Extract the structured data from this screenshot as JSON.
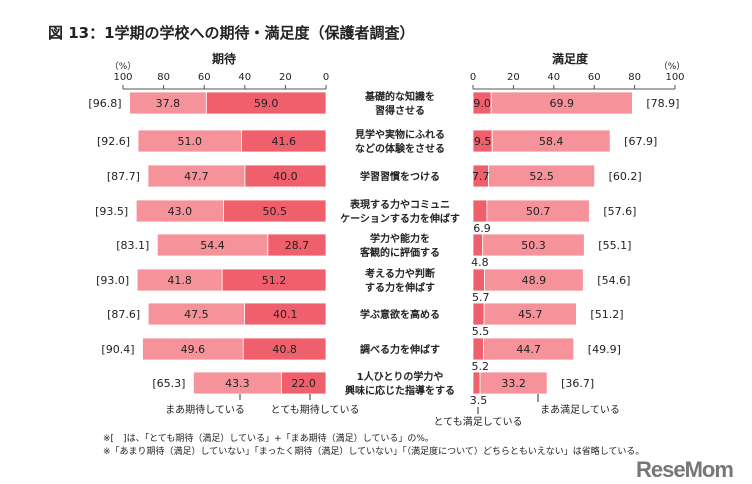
{
  "chart_data": {
    "type": "bar",
    "title": "図 13：1学期の学校への期待・満足度（保護者調査）",
    "categories": [
      "基礎的な知識を\n習得させる",
      "見学や実物にふれる\nなどの体験をさせる",
      "学習習慣をつける",
      "表現する力やコミュニ\nケーションする力を伸ばす",
      "学力や能力を\n客観的に評価する",
      "考える力や判断\nする力を伸ばす",
      "学ぶ意欲を高める",
      "調べる力を伸ばす",
      "1人ひとりの学力や\n興味に応じた指導をする"
    ],
    "panels": [
      {
        "heading": "期待",
        "unit": "（%）",
        "xlim": [
          100,
          0
        ],
        "ticks": [
          "100",
          "80",
          "60",
          "40",
          "20",
          "0"
        ],
        "series": [
          {
            "name": "とても期待している",
            "color": "#f0606c",
            "values": [
              59.0,
              41.6,
              40.0,
              50.5,
              28.7,
              51.2,
              40.1,
              40.8,
              22.0
            ]
          },
          {
            "name": "まあ期待している",
            "color": "#f6939a",
            "values": [
              37.8,
              51.0,
              47.7,
              43.0,
              54.4,
              41.8,
              47.5,
              49.6,
              43.3
            ]
          }
        ],
        "totals": [
          "[96.8]",
          "[92.6]",
          "[87.7]",
          "[93.5]",
          "[83.1]",
          "[93.0]",
          "[87.6]",
          "[90.4]",
          "[65.3]"
        ]
      },
      {
        "heading": "満足度",
        "unit": "（%）",
        "xlim": [
          0,
          100
        ],
        "ticks": [
          "0",
          "20",
          "40",
          "60",
          "80",
          "100"
        ],
        "series": [
          {
            "name": "とても満足している",
            "color": "#f0606c",
            "values": [
              9.0,
              9.5,
              7.7,
              6.9,
              4.8,
              5.7,
              5.5,
              5.2,
              3.5
            ]
          },
          {
            "name": "まあ満足している",
            "color": "#f6939a",
            "values": [
              69.9,
              58.4,
              52.5,
              50.7,
              50.3,
              48.9,
              45.7,
              44.7,
              33.2
            ]
          }
        ],
        "totals": [
          "[78.9]",
          "[67.9]",
          "[60.2]",
          "[57.6]",
          "[55.1]",
          "[54.6]",
          "[51.2]",
          "[49.9]",
          "[36.7]"
        ]
      }
    ],
    "notes": [
      "※[　]は、「とても期待（満足）している」+「まあ期待（満足）している」の%。",
      "※「あまり期待（満足）していない」「まったく期待（満足）していない」「（満足度について）どちらともいえない」は省略している。"
    ]
  },
  "logo": "ReseMom"
}
